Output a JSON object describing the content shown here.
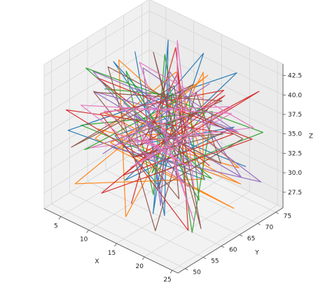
{
  "chart_data": {
    "type": "line",
    "projection": "3d",
    "xlabel": "X",
    "ylabel": "Y",
    "zlabel": "Z",
    "xlim": [
      2,
      26
    ],
    "ylim": [
      48,
      77
    ],
    "zlim": [
      25.5,
      44
    ],
    "x_ticks": [
      "5",
      "10",
      "15",
      "20",
      "25"
    ],
    "y_ticks": [
      "50",
      "55",
      "60",
      "65",
      "70",
      "75"
    ],
    "z_ticks": [
      "27.5",
      "30.0",
      "32.5",
      "35.0",
      "37.5",
      "40.0",
      "42.5"
    ],
    "grid": true,
    "pane_color": "#f2f2f2",
    "series_colors": [
      "#1f77b4",
      "#ff7f0e",
      "#2ca02c",
      "#d62728",
      "#9467bd",
      "#8c564b",
      "#e377c2"
    ],
    "series": [
      {
        "points": [
          [
            4,
            70,
            40
          ],
          [
            21,
            52,
            30
          ],
          [
            8,
            73,
            42
          ],
          [
            17,
            55,
            28
          ],
          [
            12,
            68,
            38
          ],
          [
            23,
            60,
            33
          ],
          [
            5,
            50,
            36
          ],
          [
            19,
            75,
            41
          ],
          [
            10,
            58,
            29
          ],
          [
            25,
            65,
            39
          ],
          [
            7,
            62,
            31
          ],
          [
            15,
            72,
            43
          ],
          [
            22,
            49,
            35
          ],
          [
            3,
            66,
            30
          ],
          [
            18,
            57,
            40
          ],
          [
            11,
            74,
            27
          ],
          [
            24,
            53,
            37
          ],
          [
            6,
            61,
            42
          ],
          [
            14,
            69,
            32
          ],
          [
            20,
            76,
            29
          ]
        ]
      },
      {
        "points": [
          [
            9,
            52,
            37
          ],
          [
            22,
            71,
            31
          ],
          [
            5,
            64,
            41
          ],
          [
            16,
            49,
            29
          ],
          [
            13,
            75,
            39
          ],
          [
            24,
            58,
            34
          ],
          [
            3,
            55,
            27
          ],
          [
            19,
            67,
            43
          ],
          [
            8,
            60,
            33
          ],
          [
            21,
            73,
            28
          ],
          [
            11,
            51,
            40
          ],
          [
            17,
            63,
            36
          ],
          [
            6,
            70,
            30
          ],
          [
            25,
            56,
            38
          ],
          [
            14,
            66,
            42
          ],
          [
            4,
            59,
            32
          ],
          [
            23,
            68,
            27
          ],
          [
            10,
            54,
            35
          ],
          [
            18,
            62,
            40
          ],
          [
            12,
            72,
            31
          ]
        ]
      },
      {
        "points": [
          [
            15,
            61,
            35
          ],
          [
            4,
            74,
            30
          ],
          [
            23,
            50,
            40
          ],
          [
            9,
            67,
            27
          ],
          [
            20,
            57,
            43
          ],
          [
            6,
            53,
            33
          ],
          [
            17,
            70,
            37
          ],
          [
            12,
            63,
            29
          ],
          [
            25,
            73,
            36
          ],
          [
            3,
            58,
            41
          ],
          [
            21,
            65,
            31
          ],
          [
            8,
            49,
            38
          ],
          [
            14,
            76,
            34
          ],
          [
            24,
            55,
            28
          ],
          [
            10,
            69,
            42
          ],
          [
            19,
            52,
            32
          ],
          [
            5,
            66,
            39
          ],
          [
            22,
            60,
            30
          ],
          [
            13,
            71,
            37
          ],
          [
            7,
            57,
            40
          ]
        ]
      },
      {
        "points": [
          [
            20,
            66,
            32
          ],
          [
            7,
            55,
            42
          ],
          [
            25,
            70,
            36
          ],
          [
            11,
            50,
            30
          ],
          [
            18,
            73,
            39
          ],
          [
            3,
            62,
            34
          ],
          [
            22,
            57,
            27
          ],
          [
            13,
            68,
            41
          ],
          [
            5,
            75,
            31
          ],
          [
            16,
            53,
            37
          ],
          [
            24,
            64,
            43
          ],
          [
            9,
            59,
            29
          ],
          [
            21,
            71,
            35
          ],
          [
            4,
            51,
            38
          ],
          [
            14,
            58,
            33
          ],
          [
            23,
            75,
            40
          ],
          [
            6,
            67,
            28
          ],
          [
            19,
            61,
            36
          ],
          [
            10,
            72,
            42
          ],
          [
            17,
            49,
            31
          ]
        ]
      },
      {
        "points": [
          [
            6,
            58,
            31
          ],
          [
            18,
            69,
            41
          ],
          [
            11,
            53,
            35
          ],
          [
            24,
            74,
            29
          ],
          [
            8,
            65,
            38
          ],
          [
            15,
            50,
            43
          ],
          [
            22,
            61,
            33
          ],
          [
            4,
            71,
            27
          ],
          [
            13,
            56,
            39
          ],
          [
            25,
            67,
            32
          ],
          [
            7,
            75,
            37
          ],
          [
            19,
            54,
            30
          ],
          [
            10,
            63,
            42
          ],
          [
            21,
            72,
            35
          ],
          [
            3,
            60,
            40
          ],
          [
            16,
            66,
            28
          ],
          [
            23,
            52,
            36
          ],
          [
            12,
            70,
            31
          ],
          [
            5,
            57,
            39
          ],
          [
            20,
            74,
            34
          ]
        ]
      },
      {
        "points": [
          [
            12,
            57,
            33
          ],
          [
            25,
            62,
            39
          ],
          [
            4,
            68,
            29
          ],
          [
            17,
            74,
            37
          ],
          [
            9,
            51,
            42
          ],
          [
            21,
            56,
            31
          ],
          [
            14,
            65,
            35
          ],
          [
            6,
            72,
            40
          ],
          [
            23,
            59,
            27
          ],
          [
            11,
            70,
            38
          ],
          [
            3,
            54,
            32
          ],
          [
            19,
            63,
            43
          ],
          [
            8,
            76,
            34
          ],
          [
            16,
            58,
            30
          ],
          [
            24,
            69,
            36
          ],
          [
            5,
            61,
            41
          ],
          [
            20,
            51,
            28
          ],
          [
            13,
            73,
            37
          ],
          [
            22,
            66,
            33
          ],
          [
            10,
            55,
            39
          ]
        ]
      },
      {
        "points": [
          [
            17,
            64,
            38
          ],
          [
            5,
            56,
            32
          ],
          [
            22,
            75,
            35
          ],
          [
            10,
            62,
            43
          ],
          [
            25,
            54,
            30
          ],
          [
            8,
            69,
            36
          ],
          [
            19,
            49,
            40
          ],
          [
            13,
            71,
            28
          ],
          [
            3,
            63,
            34
          ],
          [
            24,
            66,
            41
          ],
          [
            11,
            58,
            31
          ],
          [
            20,
            72,
            37
          ],
          [
            6,
            52,
            39
          ],
          [
            15,
            68,
            27
          ],
          [
            23,
            57,
            33
          ],
          [
            9,
            74,
            42
          ],
          [
            18,
            60,
            35
          ],
          [
            4,
            67,
            30
          ],
          [
            21,
            53,
            38
          ],
          [
            14,
            75,
            32
          ]
        ]
      }
    ]
  }
}
